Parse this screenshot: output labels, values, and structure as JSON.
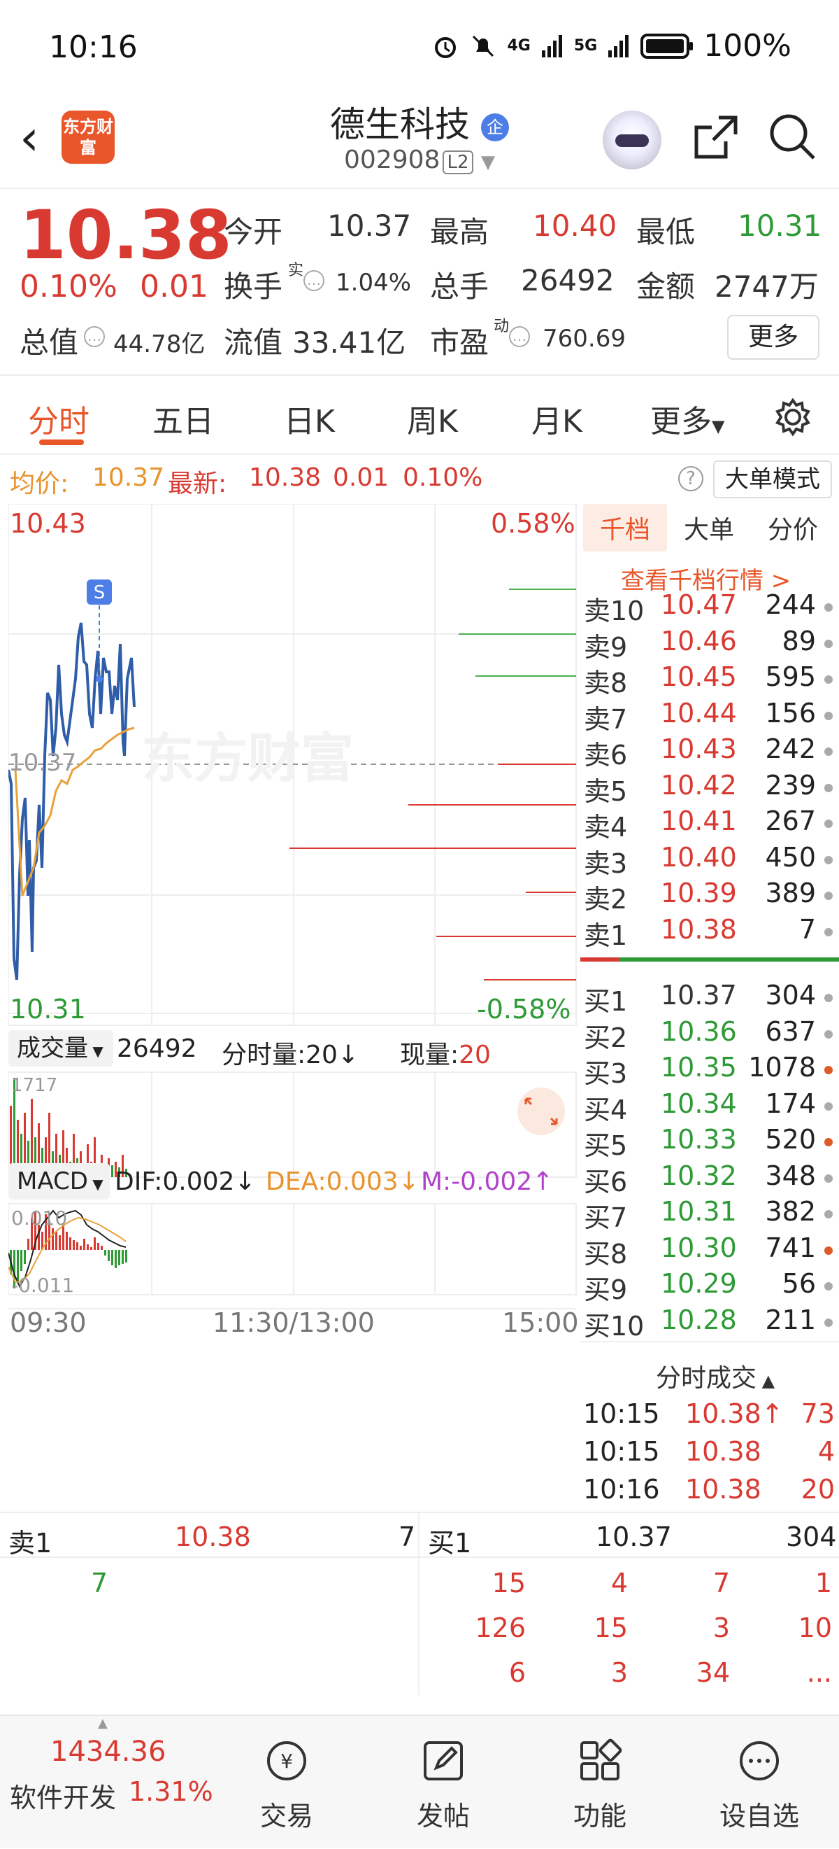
{
  "status_bar": {
    "time": "10:16",
    "network1": "4G",
    "network2": "5G",
    "battery": "100%"
  },
  "header": {
    "logo_text": "东方财富",
    "title": "德生科技",
    "badge": "企",
    "code": "002908",
    "level": "L2"
  },
  "quote": {
    "price": "10.38",
    "change_pct": "0.10%",
    "change_abs": "0.01",
    "open_label": "今开",
    "open": "10.37",
    "high_label": "最高",
    "high": "10.40",
    "low_label": "最低",
    "low": "10.31",
    "turnover_label": "换手",
    "turnover_sup": "实",
    "turnover": "1.04%",
    "volume_label": "总手",
    "volume": "26492",
    "amount_label": "金额",
    "amount": "2747万",
    "mktcap_label": "总值",
    "mktcap": "44.78亿",
    "float_label": "流值",
    "float": "33.41亿",
    "pe_label": "市盈",
    "pe_sup": "动",
    "pe": "760.69",
    "more": "更多"
  },
  "tabs": [
    "分时",
    "五日",
    "日K",
    "周K",
    "月K",
    "更多"
  ],
  "infobar": {
    "avg_label": "均价:",
    "avg": "10.37",
    "last_label": "最新:",
    "last": "10.38",
    "chg": "0.01",
    "pct": "0.10%",
    "mode": "大单模式"
  },
  "chart": {
    "y_high": "10.43",
    "y_low": "10.31",
    "y_mid": "10.37",
    "pct_high": "0.58%",
    "pct_low": "-0.58%",
    "signal": "S",
    "watermark": "东方财富",
    "vol_label": "成交量",
    "vol_total": "26492",
    "vol_sub_label": "分时量:20",
    "vol_now_label": "现量:",
    "vol_now": "20",
    "vol_max": "1717",
    "macd_label": "MACD",
    "dif": "DIF:0.002",
    "dea": "DEA:0.003",
    "m": "M:-0.002",
    "macd_high": "0.010",
    "macd_low": "-0.011",
    "time_start": "09:30",
    "time_mid": "11:30/13:00",
    "time_end": "15:00"
  },
  "orderbook": {
    "tabs": [
      "千档",
      "大单",
      "分价"
    ],
    "link": "查看千档行情 >",
    "asks": [
      {
        "name": "卖10",
        "price": "10.47",
        "vol": "244",
        "dot": "gray"
      },
      {
        "name": "卖9",
        "price": "10.46",
        "vol": "89",
        "dot": "gray"
      },
      {
        "name": "卖8",
        "price": "10.45",
        "vol": "595",
        "dot": "gray"
      },
      {
        "name": "卖7",
        "price": "10.44",
        "vol": "156",
        "dot": "gray"
      },
      {
        "name": "卖6",
        "price": "10.43",
        "vol": "242",
        "dot": "gray"
      },
      {
        "name": "卖5",
        "price": "10.42",
        "vol": "239",
        "dot": "gray"
      },
      {
        "name": "卖4",
        "price": "10.41",
        "vol": "267",
        "dot": "gray"
      },
      {
        "name": "卖3",
        "price": "10.40",
        "vol": "450",
        "dot": "gray"
      },
      {
        "name": "卖2",
        "price": "10.39",
        "vol": "389",
        "dot": "gray"
      },
      {
        "name": "卖1",
        "price": "10.38",
        "vol": "7",
        "dot": "gray"
      }
    ],
    "bids": [
      {
        "name": "买1",
        "price": "10.37",
        "vol": "304",
        "dot": "gray"
      },
      {
        "name": "买2",
        "price": "10.36",
        "vol": "637",
        "dot": "gray"
      },
      {
        "name": "买3",
        "price": "10.35",
        "vol": "1078",
        "dot": "orange"
      },
      {
        "name": "买4",
        "price": "10.34",
        "vol": "174",
        "dot": "gray"
      },
      {
        "name": "买5",
        "price": "10.33",
        "vol": "520",
        "dot": "orange"
      },
      {
        "name": "买6",
        "price": "10.32",
        "vol": "348",
        "dot": "gray"
      },
      {
        "name": "买7",
        "price": "10.31",
        "vol": "382",
        "dot": "gray"
      },
      {
        "name": "买8",
        "price": "10.30",
        "vol": "741",
        "dot": "orange"
      },
      {
        "name": "买9",
        "price": "10.29",
        "vol": "56",
        "dot": "gray"
      },
      {
        "name": "买10",
        "price": "10.28",
        "vol": "211",
        "dot": "gray"
      }
    ],
    "ticks_label": "分时成交",
    "ticks": [
      {
        "time": "10:15",
        "price": "10.38↑",
        "vol": "73"
      },
      {
        "time": "10:15",
        "price": "10.38",
        "vol": "4"
      },
      {
        "time": "10:16",
        "price": "10.38",
        "vol": "20"
      }
    ]
  },
  "depth": {
    "ask_label": "卖1",
    "ask_price": "10.38",
    "ask_vol": "7",
    "ask_queue": [
      "7"
    ],
    "bid_label": "买1",
    "bid_price": "10.37",
    "bid_vol": "304",
    "bid_queue": [
      "15",
      "4",
      "7",
      "1",
      "126",
      "15",
      "3",
      "10",
      "6",
      "3",
      "34",
      "..."
    ]
  },
  "bottom_nav": {
    "index_value": "1434.36",
    "index_name": "软件开发",
    "index_pct": "1.31%",
    "items": [
      "交易",
      "发帖",
      "功能",
      "设自选"
    ]
  }
}
